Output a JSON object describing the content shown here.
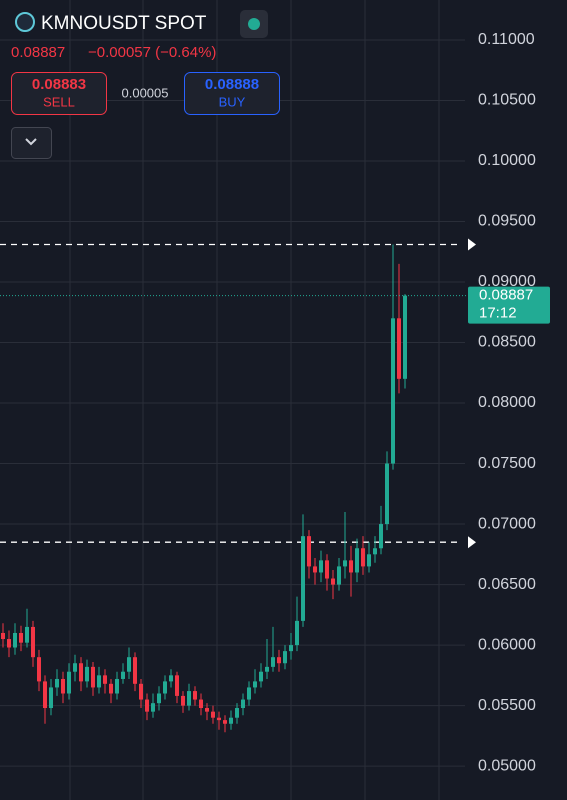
{
  "chart_data": {
    "type": "candlestick",
    "title": "KMNOUSDT SPOT",
    "last": 0.08887,
    "change": "−0.00057 (−0.64%)",
    "sell": 0.08883,
    "sell_label": "SELL",
    "spread": 5e-05,
    "buy": 0.08888,
    "buy_label": "BUY",
    "countdown": "17:12",
    "up_color": "#22ab94",
    "down_color": "#f23645",
    "ylim": [
      0.0472,
      0.1133
    ],
    "yticks": [
      {
        "value": 0.11,
        "label": "0.11000"
      },
      {
        "value": 0.105,
        "label": "0.10500"
      },
      {
        "value": 0.1,
        "label": "0.10000"
      },
      {
        "value": 0.095,
        "label": "0.09500"
      },
      {
        "value": 0.09,
        "label": "0.09000"
      },
      {
        "value": 0.085,
        "label": "0.08500"
      },
      {
        "value": 0.08,
        "label": "0.08000"
      },
      {
        "value": 0.075,
        "label": "0.07500"
      },
      {
        "value": 0.07,
        "label": "0.07000"
      },
      {
        "value": 0.065,
        "label": "0.06500"
      },
      {
        "value": 0.06,
        "label": "0.06000"
      },
      {
        "value": 0.055,
        "label": "0.05500"
      },
      {
        "value": 0.05,
        "label": "0.05000"
      }
    ],
    "grid": true,
    "hlines": [
      0.0931,
      0.0685
    ],
    "candles": {
      "open": [
        0.061,
        0.0605,
        0.0598,
        0.061,
        0.0602,
        0.0615,
        0.059,
        0.057,
        0.0548,
        0.0565,
        0.0572,
        0.056,
        0.0578,
        0.0585,
        0.057,
        0.0582,
        0.0565,
        0.0575,
        0.0568,
        0.056,
        0.0572,
        0.0578,
        0.059,
        0.0568,
        0.0555,
        0.0545,
        0.0552,
        0.056,
        0.057,
        0.0575,
        0.0558,
        0.055,
        0.0562,
        0.0555,
        0.0548,
        0.0545,
        0.054,
        0.0538,
        0.0535,
        0.054,
        0.0548,
        0.0555,
        0.0565,
        0.057,
        0.0578,
        0.0582,
        0.059,
        0.0585,
        0.0595,
        0.06,
        0.062,
        0.069,
        0.0665,
        0.066,
        0.067,
        0.0655,
        0.065,
        0.0665,
        0.067,
        0.066,
        0.068,
        0.0665,
        0.0675,
        0.068,
        0.07,
        0.075,
        0.087,
        0.082
      ],
      "close": [
        0.0605,
        0.0598,
        0.061,
        0.0602,
        0.0615,
        0.059,
        0.057,
        0.0548,
        0.0565,
        0.0572,
        0.056,
        0.0578,
        0.0585,
        0.057,
        0.0582,
        0.0565,
        0.0575,
        0.0568,
        0.056,
        0.0572,
        0.0578,
        0.059,
        0.0568,
        0.0555,
        0.0545,
        0.0552,
        0.056,
        0.057,
        0.0575,
        0.0558,
        0.055,
        0.0562,
        0.0555,
        0.0548,
        0.0545,
        0.054,
        0.0538,
        0.0535,
        0.054,
        0.0548,
        0.0555,
        0.0565,
        0.057,
        0.0578,
        0.0582,
        0.059,
        0.0585,
        0.0595,
        0.06,
        0.062,
        0.069,
        0.0665,
        0.066,
        0.067,
        0.0655,
        0.065,
        0.0665,
        0.067,
        0.066,
        0.068,
        0.0665,
        0.0675,
        0.068,
        0.07,
        0.075,
        0.087,
        0.082,
        0.08887
      ],
      "high": [
        0.0618,
        0.0612,
        0.0618,
        0.0616,
        0.063,
        0.062,
        0.0596,
        0.0575,
        0.0572,
        0.058,
        0.0578,
        0.0585,
        0.0592,
        0.059,
        0.0588,
        0.0586,
        0.0582,
        0.058,
        0.0572,
        0.0578,
        0.0585,
        0.0598,
        0.0594,
        0.0572,
        0.056,
        0.056,
        0.0566,
        0.0575,
        0.058,
        0.0578,
        0.0562,
        0.0568,
        0.0566,
        0.056,
        0.0552,
        0.055,
        0.0545,
        0.0542,
        0.0546,
        0.0552,
        0.056,
        0.057,
        0.058,
        0.0585,
        0.0605,
        0.0615,
        0.0596,
        0.06,
        0.061,
        0.064,
        0.0708,
        0.0695,
        0.0672,
        0.0678,
        0.0675,
        0.0662,
        0.0672,
        0.071,
        0.0682,
        0.0688,
        0.069,
        0.0685,
        0.069,
        0.0715,
        0.076,
        0.0931,
        0.0915,
        0.089
      ],
      "low": [
        0.0598,
        0.059,
        0.0592,
        0.0595,
        0.0598,
        0.0582,
        0.0562,
        0.0535,
        0.0542,
        0.0558,
        0.0552,
        0.0555,
        0.057,
        0.0562,
        0.0565,
        0.0558,
        0.056,
        0.056,
        0.0552,
        0.0555,
        0.0568,
        0.0572,
        0.0562,
        0.0548,
        0.0538,
        0.054,
        0.0546,
        0.0555,
        0.0565,
        0.0552,
        0.0544,
        0.0546,
        0.055,
        0.0542,
        0.0538,
        0.0535,
        0.053,
        0.0528,
        0.053,
        0.0535,
        0.0542,
        0.055,
        0.056,
        0.0565,
        0.0572,
        0.0578,
        0.0578,
        0.058,
        0.0588,
        0.0595,
        0.0615,
        0.0655,
        0.065,
        0.0652,
        0.0645,
        0.0638,
        0.0645,
        0.0655,
        0.064,
        0.0652,
        0.0658,
        0.066,
        0.0668,
        0.0675,
        0.0695,
        0.0745,
        0.0808,
        0.0812
      ]
    }
  }
}
